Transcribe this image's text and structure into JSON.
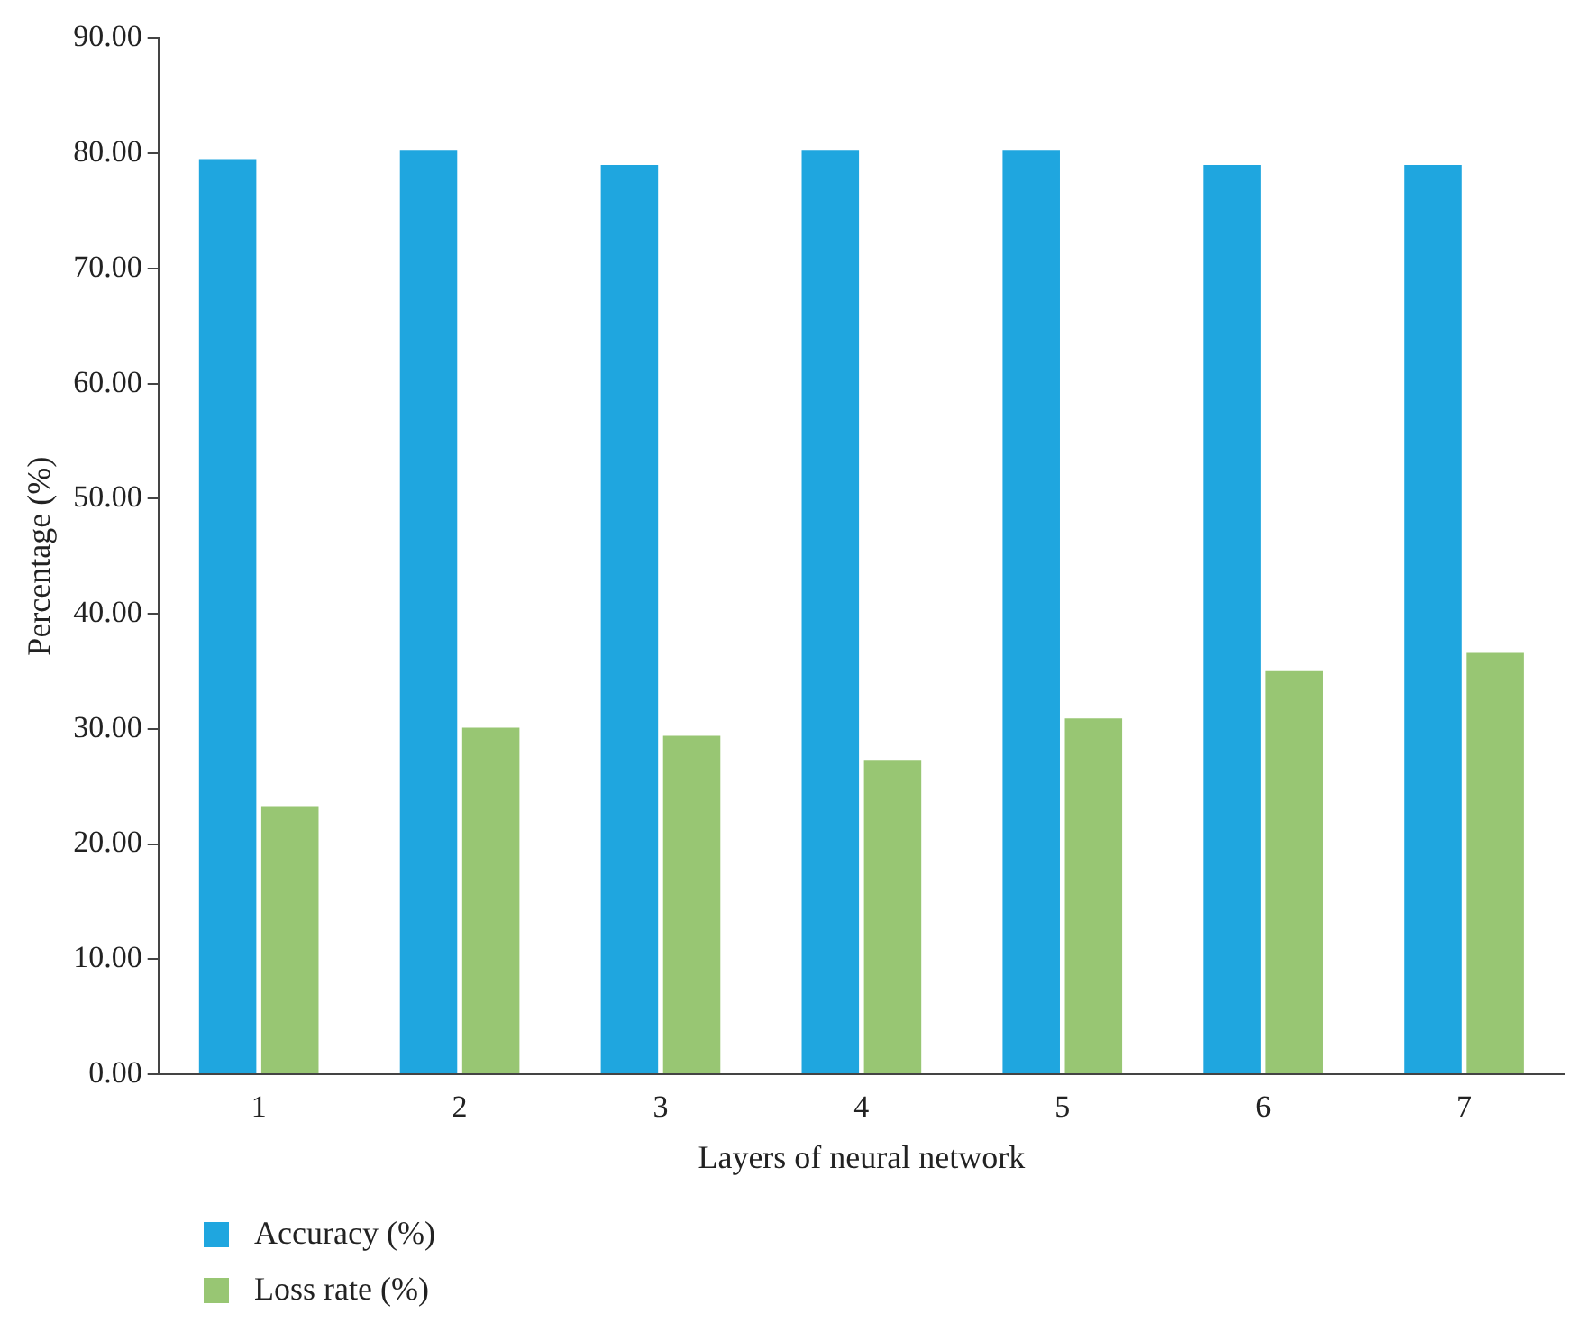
{
  "chart_data": {
    "type": "bar",
    "xlabel": "Layers of neural network",
    "ylabel": "Percentage (%)",
    "categories": [
      "1",
      "2",
      "3",
      "4",
      "5",
      "6",
      "7"
    ],
    "series": [
      {
        "name": "Accuracy (%)",
        "color": "#1fa6df",
        "values": [
          79.5,
          80.3,
          79.0,
          80.3,
          80.3,
          79.0,
          79.0
        ]
      },
      {
        "name": "Loss rate (%)",
        "color": "#98c673",
        "values": [
          23.3,
          30.1,
          29.4,
          27.3,
          30.9,
          35.1,
          36.6
        ]
      }
    ],
    "ylim": [
      0,
      90
    ],
    "yticks": [
      {
        "value": 0,
        "label": "0.00"
      },
      {
        "value": 10,
        "label": "10.00"
      },
      {
        "value": 20,
        "label": "20.00"
      },
      {
        "value": 30,
        "label": "30.00"
      },
      {
        "value": 40,
        "label": "40.00"
      },
      {
        "value": 50,
        "label": "50.00"
      },
      {
        "value": 60,
        "label": "60.00"
      },
      {
        "value": 70,
        "label": "70.00"
      },
      {
        "value": 80,
        "label": "80.00"
      },
      {
        "value": 90,
        "label": "90.00"
      }
    ],
    "grid": false,
    "legend": "bottom left"
  }
}
